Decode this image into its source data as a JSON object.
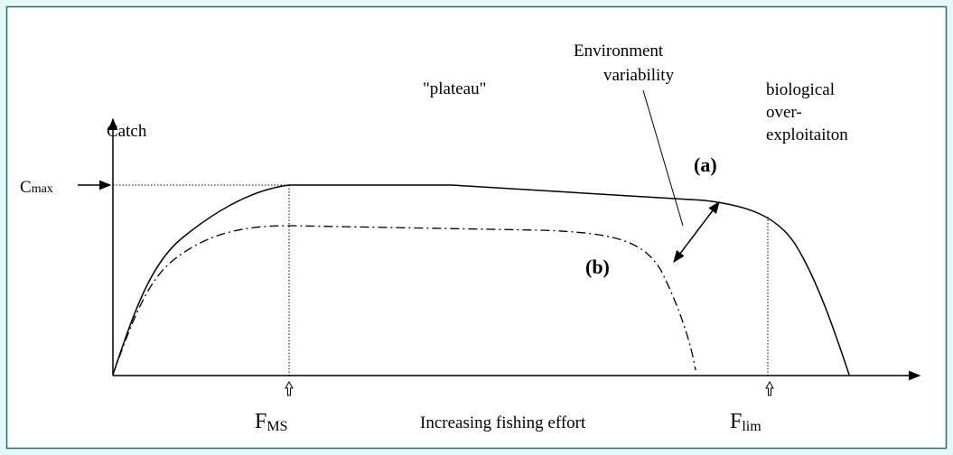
{
  "y_axis": {
    "label": "Catch"
  },
  "c_max": {
    "base": "C",
    "sub": "max"
  },
  "plateau": "\"plateau\"",
  "environment_variability": {
    "lines": [
      "Environment",
      "variability"
    ]
  },
  "biological_overexploitation": {
    "lines": [
      "biological",
      "over-",
      "exploitaiton"
    ]
  },
  "curve_a": {
    "label": "(a)"
  },
  "curve_b": {
    "label": "(b)"
  },
  "f_ms": {
    "base": "F",
    "sub": "MS"
  },
  "x_axis": {
    "label": "Increasing fishing effort"
  },
  "f_lim": {
    "base": "F",
    "sub": "lim"
  }
}
